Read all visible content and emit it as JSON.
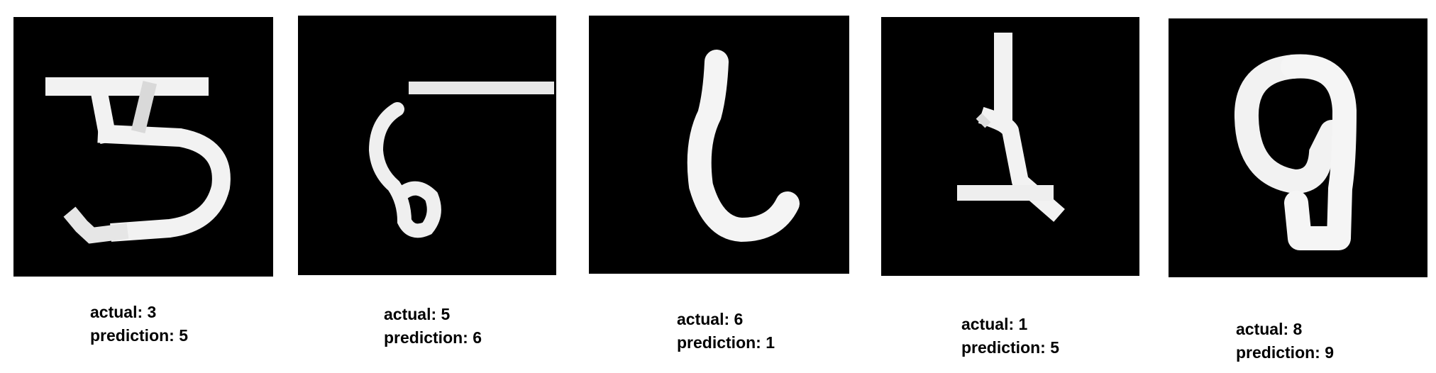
{
  "samples": [
    {
      "actual_label": "actual: 3",
      "prediction_label": "prediction: 5"
    },
    {
      "actual_label": "actual: 5",
      "prediction_label": "prediction: 6"
    },
    {
      "actual_label": "actual: 6",
      "prediction_label": "prediction: 1"
    },
    {
      "actual_label": "actual: 1",
      "prediction_label": "prediction: 5"
    },
    {
      "actual_label": "actual: 8",
      "prediction_label": "prediction: 9"
    }
  ],
  "colors": {
    "panel_background": "#000000",
    "stroke": "#f2f2f2",
    "page_background": "#ffffff",
    "text": "#000000"
  }
}
